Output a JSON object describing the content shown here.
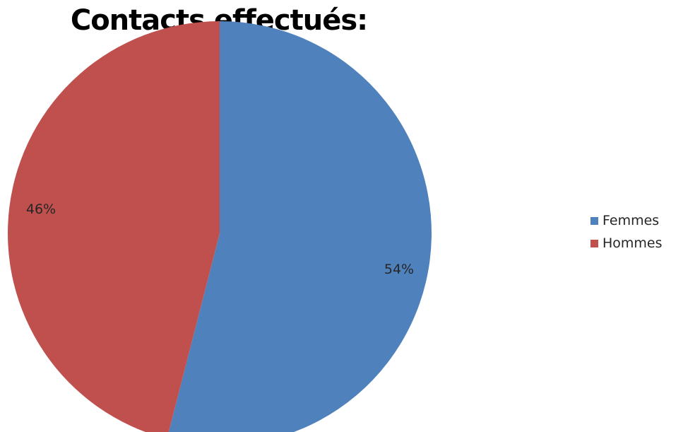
{
  "chart_data": {
    "type": "pie",
    "title": "Contacts effectués:",
    "slices": [
      {
        "label": "Femmes",
        "value": 54,
        "value_label": "54%",
        "color": "#4F81BD"
      },
      {
        "label": "Hommes",
        "value": 46,
        "value_label": "46%",
        "color": "#C0504D"
      }
    ],
    "legend_position": "right"
  }
}
